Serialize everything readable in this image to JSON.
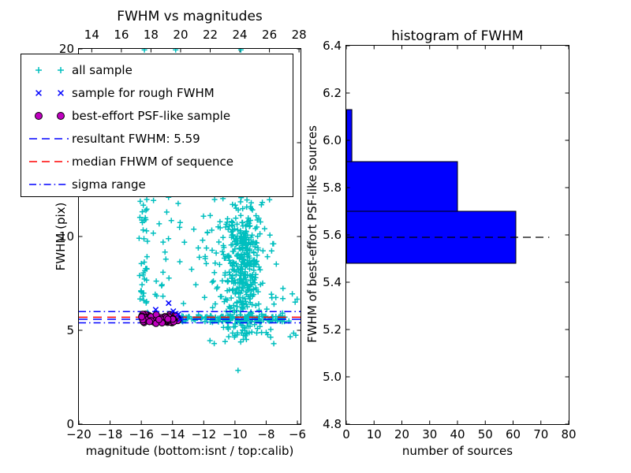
{
  "figure": {
    "background": "#ffffff"
  },
  "colors": {
    "all_sample": "#00bfbf",
    "rough_sample": "#0000ff",
    "psf_sample": "#bf00bf",
    "psf_sample_edge": "#000000",
    "resultant_line": "#0000ff",
    "median_line": "#ff0000",
    "sigma_line": "#0000ff",
    "hist_bar": "#0000ff",
    "hist_edge": "#000000",
    "hist_dashed_line": "#000000"
  },
  "legend": {
    "items": [
      {
        "label": "all sample",
        "marker": "plus",
        "color": "#00bfbf"
      },
      {
        "label": "sample for rough FWHM",
        "marker": "x",
        "color": "#0000ff"
      },
      {
        "label": "best-effort PSF-like sample",
        "marker": "circle",
        "color": "#bf00bf",
        "edge_color": "#000000"
      },
      {
        "label": "resultant FWHM: 5.59",
        "marker": "line-dashed",
        "color": "#0000ff"
      },
      {
        "label": "median FHWM of sequence",
        "marker": "line-dashed",
        "color": "#ff0000"
      },
      {
        "label": "sigma range",
        "marker": "line-dashdot",
        "color": "#0000ff"
      }
    ]
  },
  "chart_data": [
    {
      "type": "scatter",
      "title": "FWHM vs magnitudes",
      "xlabel": "magnitude (bottom:isnt / top:calib)",
      "ylabel": "FWHM (pix)",
      "xlim": [
        -20,
        -5.8
      ],
      "ylim": [
        0,
        20
      ],
      "top_xlim": [
        13.13,
        28.1
      ],
      "xticks_bottom": {
        "values": [
          -20,
          -18,
          -16,
          -14,
          -12,
          -10,
          -8,
          -6
        ],
        "labels": [
          "−20",
          "−18",
          "−16",
          "−14",
          "−12",
          "−10",
          "−8",
          "−6"
        ]
      },
      "xticks_top": {
        "values": [
          14,
          16,
          18,
          20,
          22,
          24,
          26,
          28
        ],
        "labels": [
          "14",
          "16",
          "18",
          "20",
          "22",
          "24",
          "26",
          "28"
        ]
      },
      "yticks": {
        "values": [
          0,
          5,
          10,
          15,
          20
        ],
        "labels": [
          "0",
          "5",
          "10",
          "15",
          "20"
        ]
      },
      "grid": false,
      "legend_position": "upper left",
      "series": [
        {
          "name": "all sample",
          "marker": "plus",
          "color": "#00bfbf",
          "marker_size": 7,
          "clusters": [
            {
              "shape": "uniform",
              "seed": 1,
              "count": 40,
              "x_range": [
                -16.15,
                -15.55
              ],
              "y_range": [
                5.95,
                12.2
              ]
            },
            {
              "shape": "uniform",
              "seed": 2,
              "count": 15,
              "x_range": [
                -15.35,
                -14.15
              ],
              "y_range": [
                6.3,
                12.1
              ]
            },
            {
              "shape": "uniform",
              "seed": 3,
              "count": 8,
              "x_range": [
                -14.75,
                -13.1
              ],
              "y_range": [
                8.4,
                12.1
              ]
            },
            {
              "shape": "gauss",
              "seed": 4,
              "count": 130,
              "cx": -9.9,
              "cy": 9.2,
              "sx": 1.35,
              "sy": 2.0,
              "x_clip": [
                -12.85,
                -7.45
              ],
              "y_clip": [
                5.95,
                12.15
              ]
            },
            {
              "shape": "gauss",
              "seed": 5,
              "count": 270,
              "cx": -9.45,
              "cy": 8.3,
              "sx": 0.55,
              "sy": 1.85,
              "x_clip": [
                -10.75,
                -8.2
              ],
              "y_clip": [
                5.6,
                12.15
              ]
            },
            {
              "shape": "uniform",
              "seed": 6,
              "count": 95,
              "x_range": [
                -13.45,
                -6.35
              ],
              "y_range": [
                5.43,
                5.77
              ]
            },
            {
              "shape": "gauss",
              "seed": 9,
              "count": 40,
              "cx": -10.5,
              "cy": 5.6,
              "sx": 1.6,
              "sy": 0.13,
              "x_clip": [
                -13.45,
                -7.0
              ],
              "y_clip": [
                5.3,
                5.95
              ]
            },
            {
              "shape": "gauss",
              "seed": 7,
              "count": 45,
              "cx": -9.2,
              "cy": 5.05,
              "sx": 0.85,
              "sy": 0.42,
              "x_clip": [
                -10.8,
                -7.1
              ],
              "y_clip": [
                4.25,
                5.45
              ]
            },
            {
              "shape": "uniform",
              "seed": 8,
              "count": 13,
              "x_range": [
                -7.65,
                -5.95
              ],
              "y_range": [
                4.35,
                7.3
              ]
            }
          ],
          "points": [
            [
              -11.6,
              4.45
            ],
            [
              -11.33,
              4.3
            ],
            [
              -9.8,
              2.86
            ],
            [
              -15.8,
              19.95
            ],
            [
              -13.8,
              19.95
            ],
            [
              -9.62,
              19.95
            ],
            [
              -12.78,
              8.25
            ],
            [
              -13.3,
              6.43
            ],
            [
              -7.35,
              8.53
            ],
            [
              -7.38,
              6.75
            ],
            [
              -7.5,
              6.4
            ]
          ]
        },
        {
          "name": "sample for rough FWHM",
          "marker": "x",
          "color": "#0000ff",
          "marker_size": 7,
          "points": [
            [
              -14.25,
              6.45
            ],
            [
              -15.08,
              6.1
            ],
            [
              -13.95,
              6.02
            ],
            [
              -13.62,
              5.86
            ],
            [
              -13.5,
              5.6
            ]
          ]
        },
        {
          "name": "best-effort PSF-like sample",
          "marker": "circle",
          "color": "#bf00bf",
          "edge_color": "#000000",
          "marker_size": 8,
          "clusters": [
            {
              "shape": "blob",
              "seed": 11,
              "count": 103,
              "x_range": [
                -16.03,
                -13.62
              ],
              "cy": 5.62,
              "spread": 0.27
            }
          ]
        }
      ],
      "hlines": [
        {
          "name": "resultant FWHM",
          "y": 5.59,
          "value_label": "5.59",
          "color": "#0000ff",
          "dash": "dashed"
        },
        {
          "name": "median FHWM of sequence",
          "y": 5.7,
          "color": "#ff0000",
          "dash": "dashed"
        },
        {
          "name": "sigma range upper",
          "y": 6.0,
          "color": "#0000ff",
          "dash": "dashdot"
        },
        {
          "name": "sigma range lower",
          "y": 5.4,
          "color": "#0000ff",
          "dash": "dashdot"
        }
      ]
    },
    {
      "type": "bar",
      "orientation": "horizontal",
      "title": "histogram of FWHM",
      "xlabel": "number of sources",
      "ylabel": "FWHM of best-effort PSF-like sources",
      "bin_edges": [
        5.48,
        5.7,
        5.91,
        6.13
      ],
      "counts": [
        61,
        40,
        2
      ],
      "bar_color": "#0000ff",
      "edge_color": "#000000",
      "dashed_line": {
        "y": 5.59,
        "x_extent": [
          0,
          73
        ],
        "color": "#000000"
      },
      "xlim": [
        0,
        80
      ],
      "ylim": [
        4.8,
        6.4
      ],
      "xticks": {
        "values": [
          0,
          10,
          20,
          30,
          40,
          50,
          60,
          70,
          80
        ],
        "labels": [
          "0",
          "10",
          "20",
          "30",
          "40",
          "50",
          "60",
          "70",
          "80"
        ]
      },
      "yticks": {
        "values": [
          4.8,
          5.0,
          5.2,
          5.4,
          5.6,
          5.8,
          6.0,
          6.2,
          6.4
        ],
        "labels": [
          "4.8",
          "5.0",
          "5.2",
          "5.4",
          "5.6",
          "5.8",
          "6.0",
          "6.2",
          "6.4"
        ]
      },
      "grid": false
    }
  ]
}
